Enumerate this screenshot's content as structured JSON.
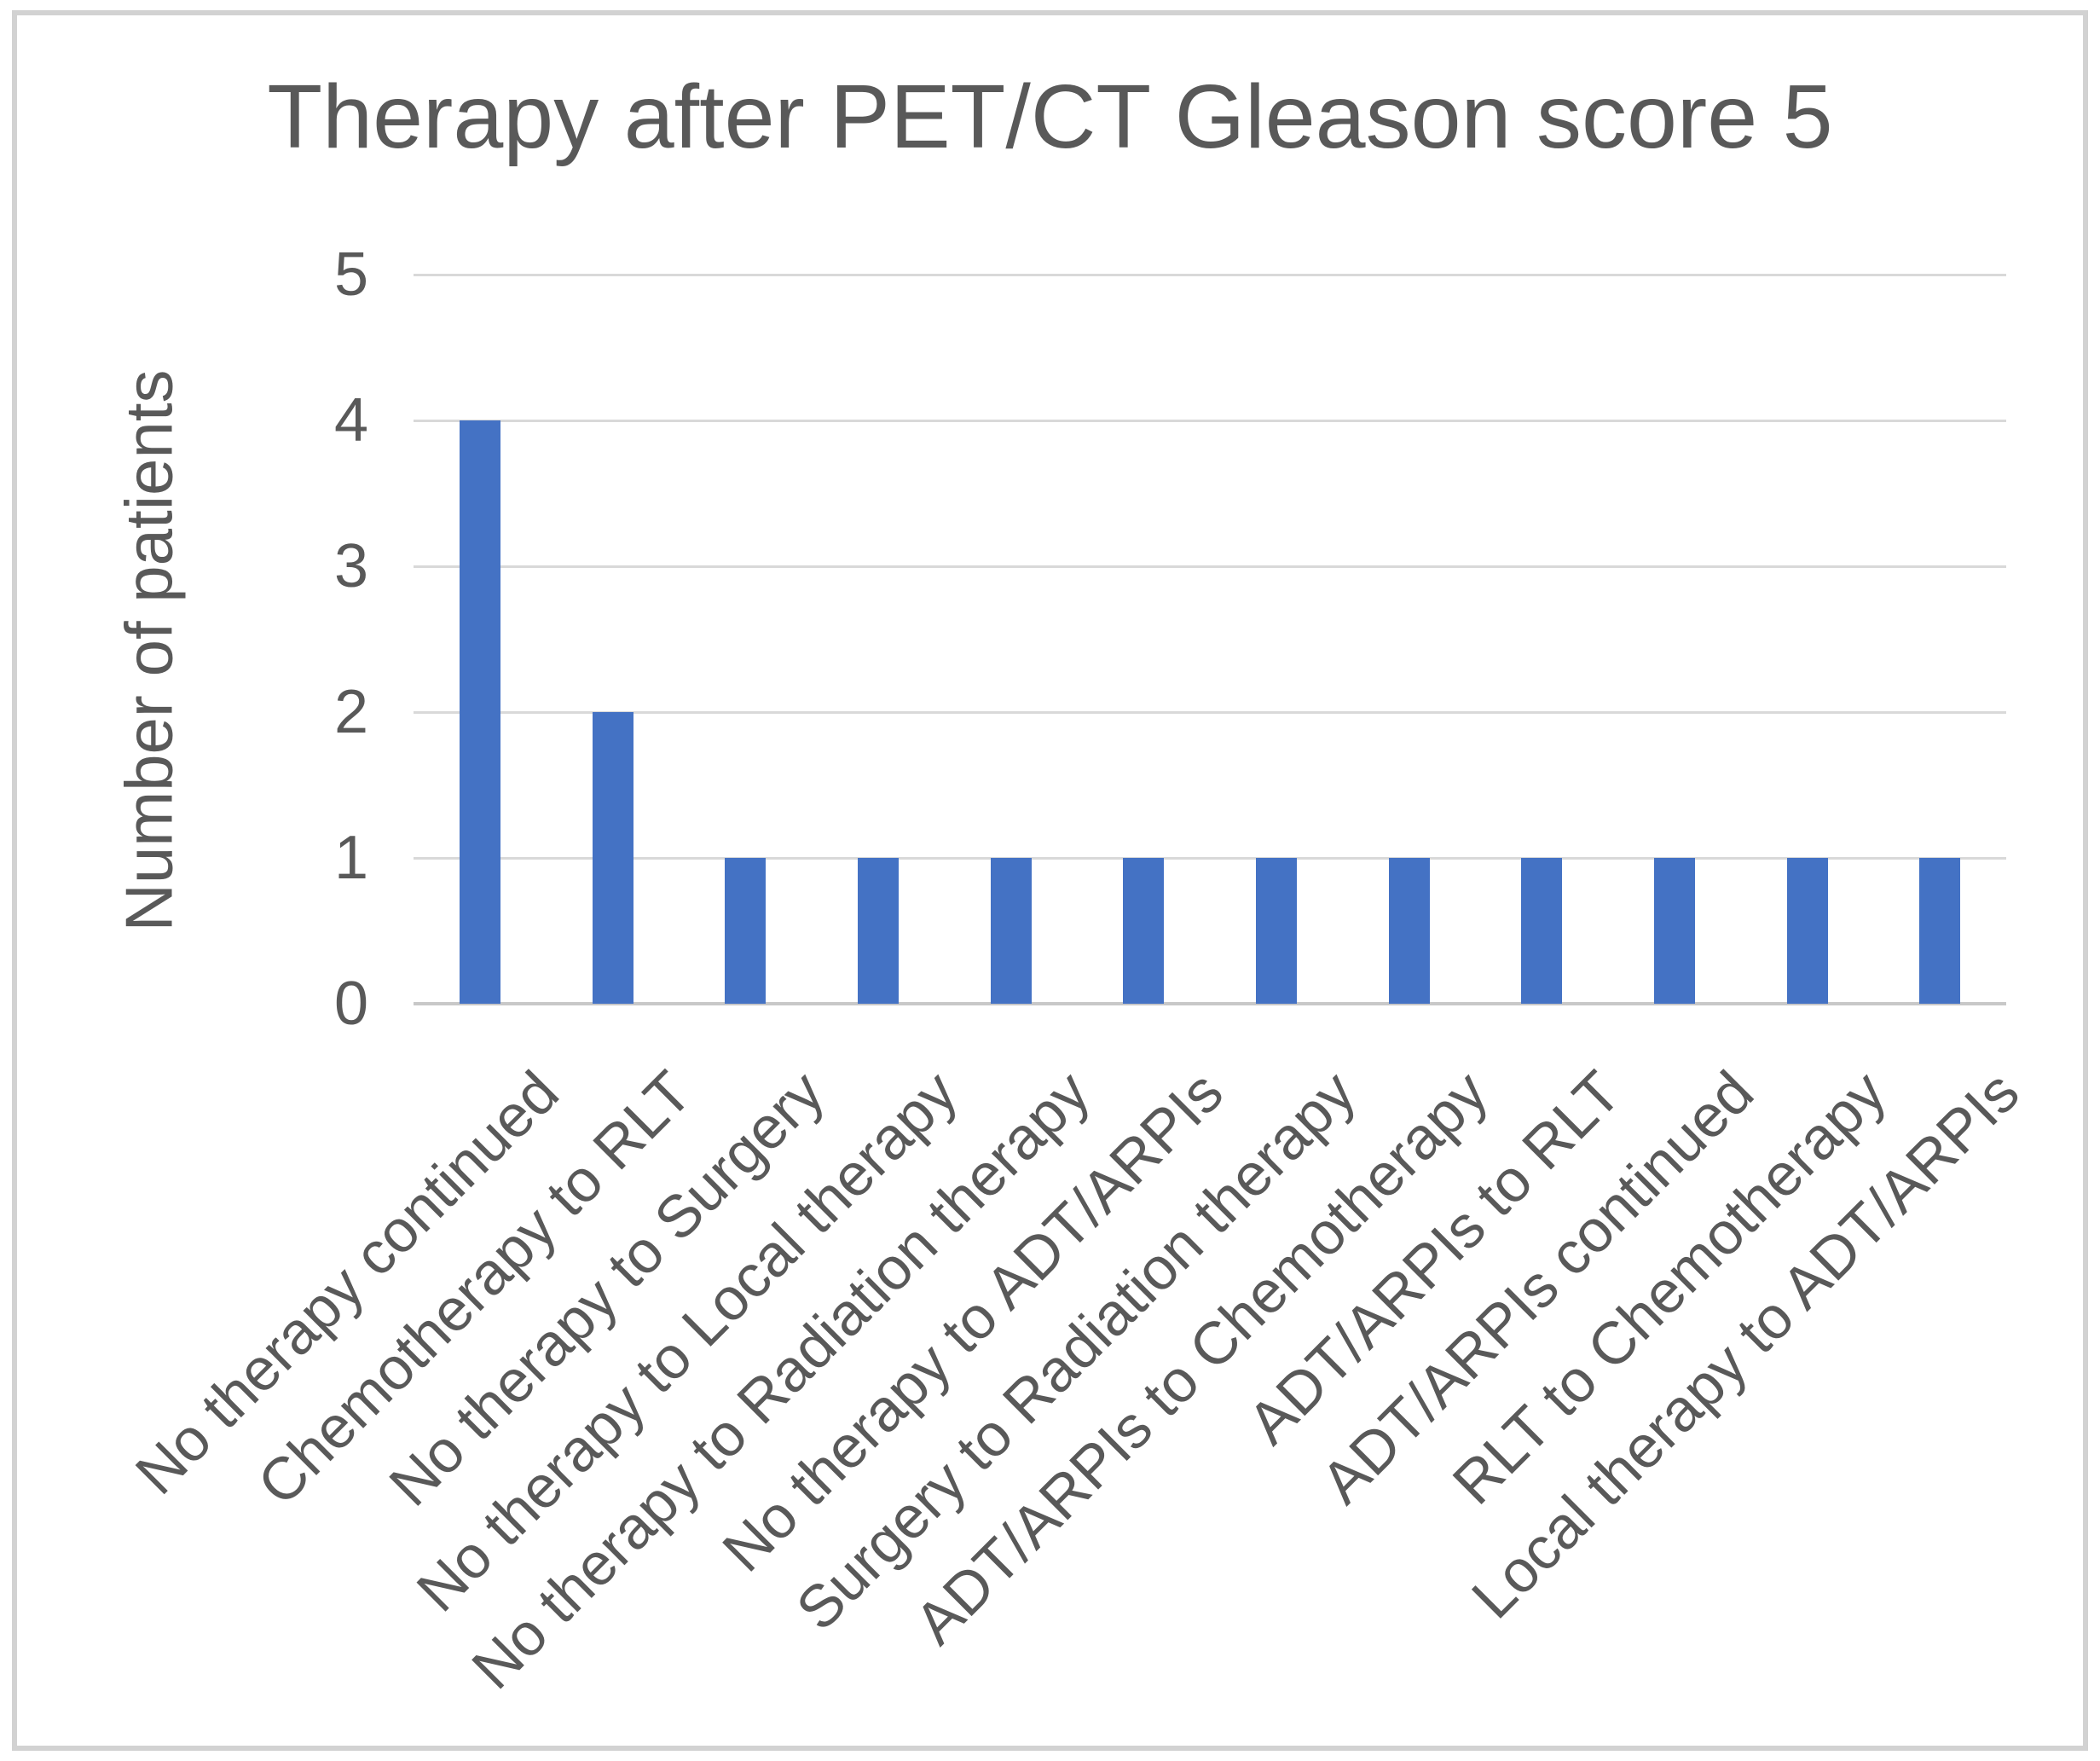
{
  "chart_data": {
    "type": "bar",
    "title": "Therapy after PET/CT Gleason score 5",
    "ylabel": "Number of patients",
    "xlabel": "",
    "categories": [
      "No therapy continued",
      "Chemotherapy to RLT",
      "No therapy to Surgery",
      "No therapy to Local therapy",
      "No therapy to Radiation therapy",
      "No therapy to ADT/ARPIs",
      "Surgery to Radiation therapy",
      "ADT/ARPIs to Chemotherapy",
      "ADT/ARPIs to RLT",
      "ADT/ARPIs continued",
      "RLT to Chemotherapy",
      "Local therapy to ADT/ARPIs"
    ],
    "values": [
      4,
      2,
      1,
      1,
      1,
      1,
      1,
      1,
      1,
      1,
      1,
      1
    ],
    "ylim": [
      0,
      5
    ],
    "yticks": [
      0,
      1,
      2,
      3,
      4,
      5
    ],
    "grid": true,
    "legend_position": "none",
    "bar_color": "#4472C4",
    "gridline_color": "#D9D9D9",
    "axis_line_color": "#C8C8C8",
    "text_color": "#595959",
    "frame_border_color": "#D2D2D2",
    "background_color": "#FFFFFF"
  }
}
